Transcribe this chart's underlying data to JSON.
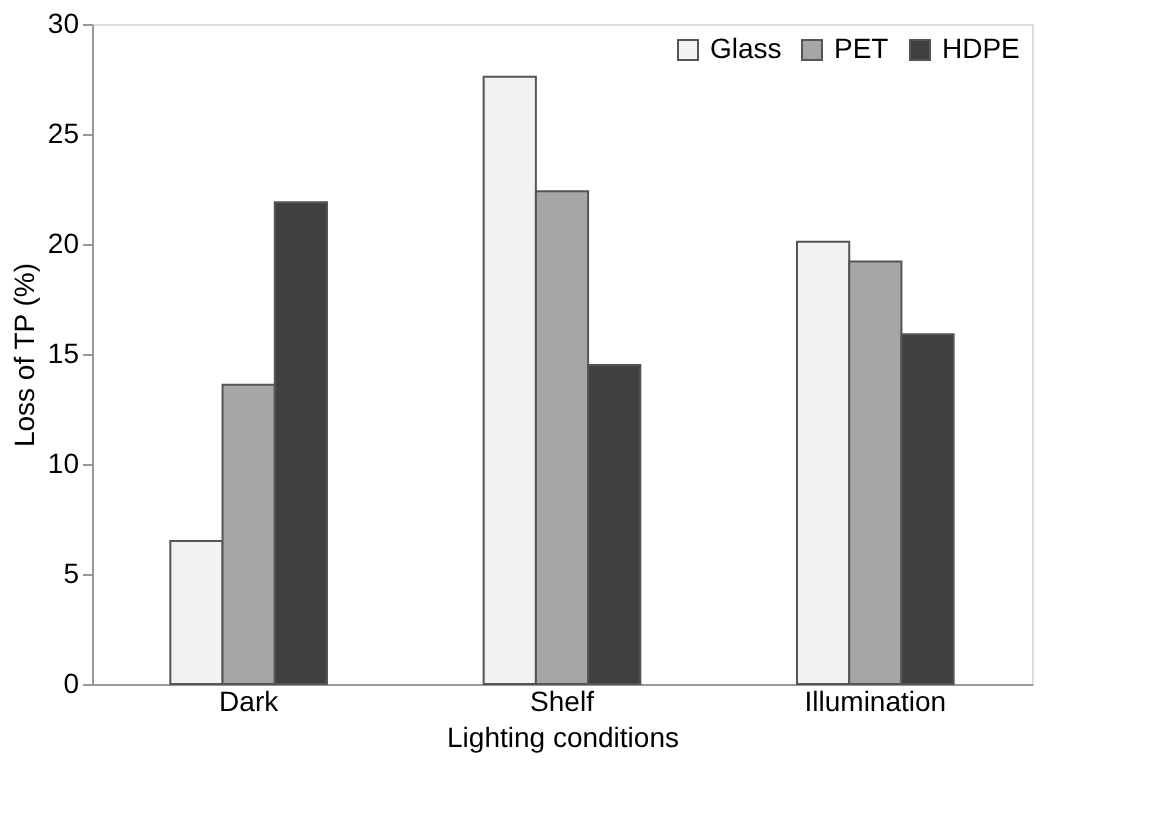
{
  "chart_data": {
    "type": "bar",
    "xlabel": "Lighting conditions",
    "ylabel": "Loss of TP (%)",
    "categories": [
      "Dark",
      "Shelf",
      "Illumination"
    ],
    "series": [
      {
        "name": "Glass",
        "color": "#f2f2f2",
        "values": [
          6.5,
          27.6,
          20.1
        ]
      },
      {
        "name": "PET",
        "color": "#a6a6a6",
        "values": [
          13.6,
          22.4,
          19.2
        ]
      },
      {
        "name": "HDPE",
        "color": "#404040",
        "values": [
          21.9,
          14.5,
          15.9
        ]
      }
    ],
    "ylim": [
      0,
      30
    ],
    "yticks": [
      0,
      5,
      10,
      15,
      20,
      25,
      30
    ],
    "grid": false,
    "legend": "top right"
  }
}
